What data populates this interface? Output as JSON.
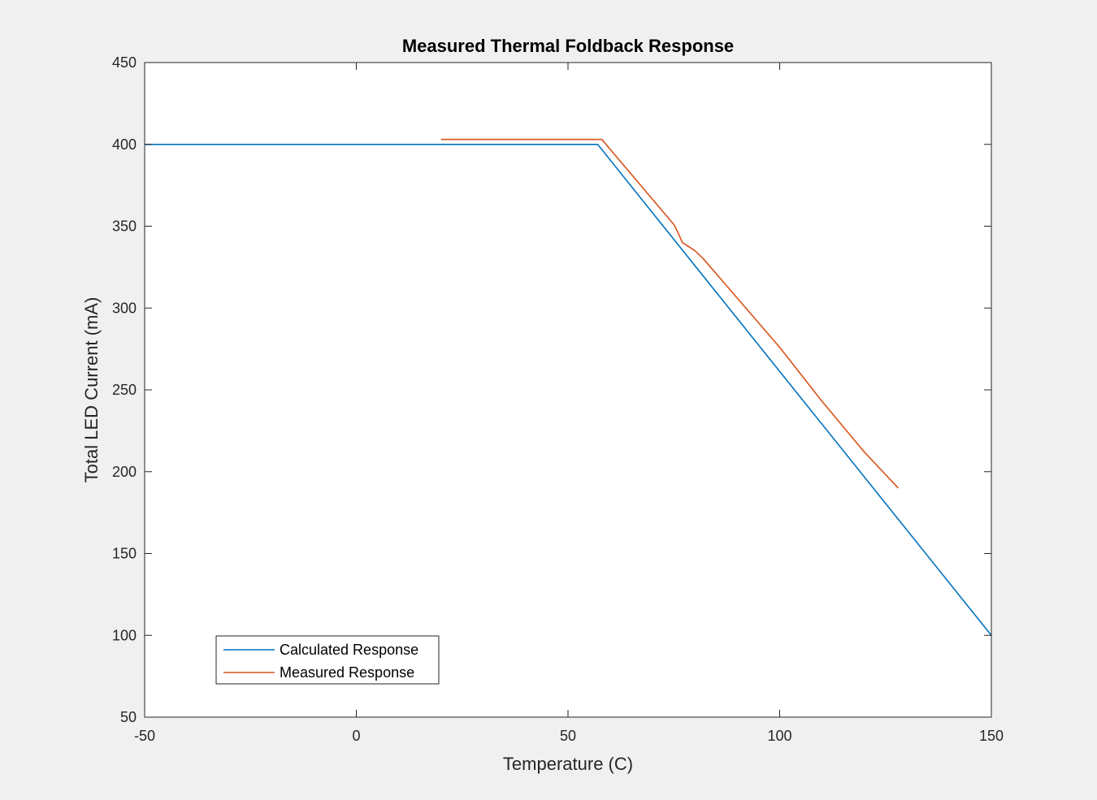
{
  "chart_data": {
    "type": "line",
    "title": "Measured Thermal Foldback Response",
    "xlabel": "Temperature (C)",
    "ylabel": "Total LED Current (mA)",
    "xlim": [
      -50,
      150
    ],
    "ylim": [
      50,
      450
    ],
    "xticks": [
      -50,
      0,
      50,
      100,
      150
    ],
    "yticks": [
      50,
      100,
      150,
      200,
      250,
      300,
      350,
      400,
      450
    ],
    "grid": false,
    "legend_position": "bottom-left",
    "series": [
      {
        "name": "Calculated Response",
        "color": "#0072BD",
        "x": [
          -50,
          57,
          150
        ],
        "y": [
          400,
          400,
          100
        ]
      },
      {
        "name": "Measured Response",
        "color": "#D95319",
        "x": [
          20,
          58,
          75,
          76,
          77,
          80,
          82,
          100,
          110,
          120,
          128
        ],
        "y": [
          403,
          403,
          351,
          346,
          340,
          335,
          330,
          276,
          243,
          212,
          190
        ]
      }
    ]
  }
}
